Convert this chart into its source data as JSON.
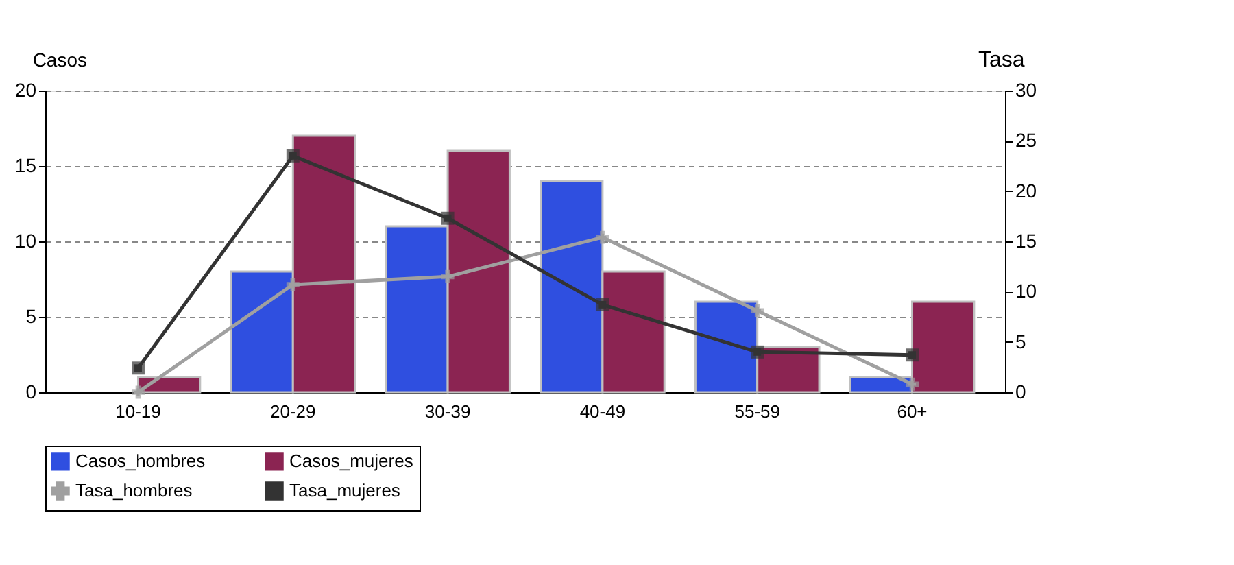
{
  "chart_data": {
    "type": "bar",
    "ylabel": "Casos",
    "y2label": "Tasa",
    "categories": [
      "10-19",
      "20-29",
      "30-39",
      "40-49",
      "55-59",
      "60+"
    ],
    "series": [
      {
        "name": "Casos_hombres",
        "color": "#2f4fe0",
        "values": [
          0,
          8,
          11,
          14,
          6,
          1
        ]
      },
      {
        "name": "Casos_mujeres",
        "color": "#8b2452",
        "values": [
          1,
          17,
          16,
          8,
          3,
          6
        ]
      },
      {
        "name": "Tasa_hombres",
        "type": "line",
        "axis": "y2",
        "color": "#a0a0a0",
        "marker": "cross",
        "values": [
          0,
          10.7,
          11.5,
          15.4,
          8.1,
          0.8
        ]
      },
      {
        "name": "Tasa_mujeres",
        "type": "line",
        "axis": "y2",
        "color": "#333333",
        "marker": "square",
        "values": [
          2.4,
          23.5,
          17.3,
          8.7,
          4.0,
          3.7
        ]
      }
    ],
    "ylim": [
      0,
      20
    ],
    "yticks": [
      0,
      5,
      10,
      15,
      20
    ],
    "y2lim": [
      0,
      30
    ],
    "y2ticks": [
      0,
      5,
      10,
      15,
      20,
      25,
      30
    ],
    "grid": "y",
    "legend": "bottom",
    "line_style": "solid"
  }
}
